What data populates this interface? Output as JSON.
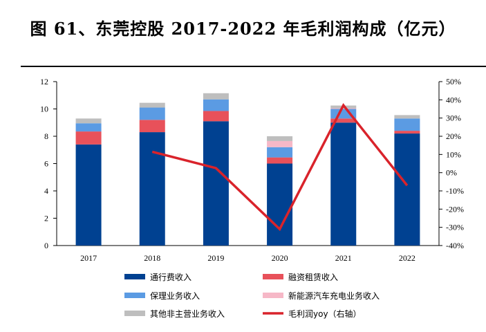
{
  "title": "图 61、东莞控股 2017-2022 年毛利润构成（亿元）",
  "colors": {
    "toll": "#004191",
    "finance_lease": "#E8515A",
    "factoring": "#5B9BE3",
    "ev_charging": "#F6B8C7",
    "other": "#BEBEBE",
    "yoy": "#D9232B"
  },
  "chart_data": {
    "type": "bar",
    "stacked": true,
    "categories": [
      "2017",
      "2018",
      "2019",
      "2020",
      "2021",
      "2022"
    ],
    "series": [
      {
        "name": "通行费收入",
        "key": "toll",
        "values": [
          7.4,
          8.3,
          9.1,
          6.0,
          9.0,
          8.2
        ]
      },
      {
        "name": "融资租赁收入",
        "key": "finance_lease",
        "values": [
          0.95,
          0.9,
          0.75,
          0.45,
          0.3,
          0.2
        ]
      },
      {
        "name": "保理业务收入",
        "key": "factoring",
        "values": [
          0.6,
          0.9,
          0.85,
          0.75,
          0.7,
          0.9
        ]
      },
      {
        "name": "新能源汽车充电业务收入",
        "key": "ev_charging",
        "values": [
          0,
          0,
          0,
          0.45,
          0.05,
          0
        ]
      },
      {
        "name": "其他非主营业务收入",
        "key": "other",
        "values": [
          0.35,
          0.35,
          0.45,
          0.35,
          0.2,
          0.25
        ]
      }
    ],
    "line": {
      "name": "毛利润yoy（右轴）",
      "key": "yoy",
      "values": [
        null,
        11.5,
        2.5,
        -31.0,
        37.0,
        -7.0
      ]
    },
    "y_left": {
      "min": 0,
      "max": 12,
      "ticks": [
        "0",
        "2",
        "4",
        "6",
        "8",
        "10",
        "12"
      ]
    },
    "y_right": {
      "min": -40,
      "max": 50,
      "ticks": [
        "-40%",
        "-30%",
        "-20%",
        "-10%",
        "0%",
        "10%",
        "20%",
        "30%",
        "40%",
        "50%"
      ]
    },
    "legend_position": "bottom",
    "grid": false
  }
}
